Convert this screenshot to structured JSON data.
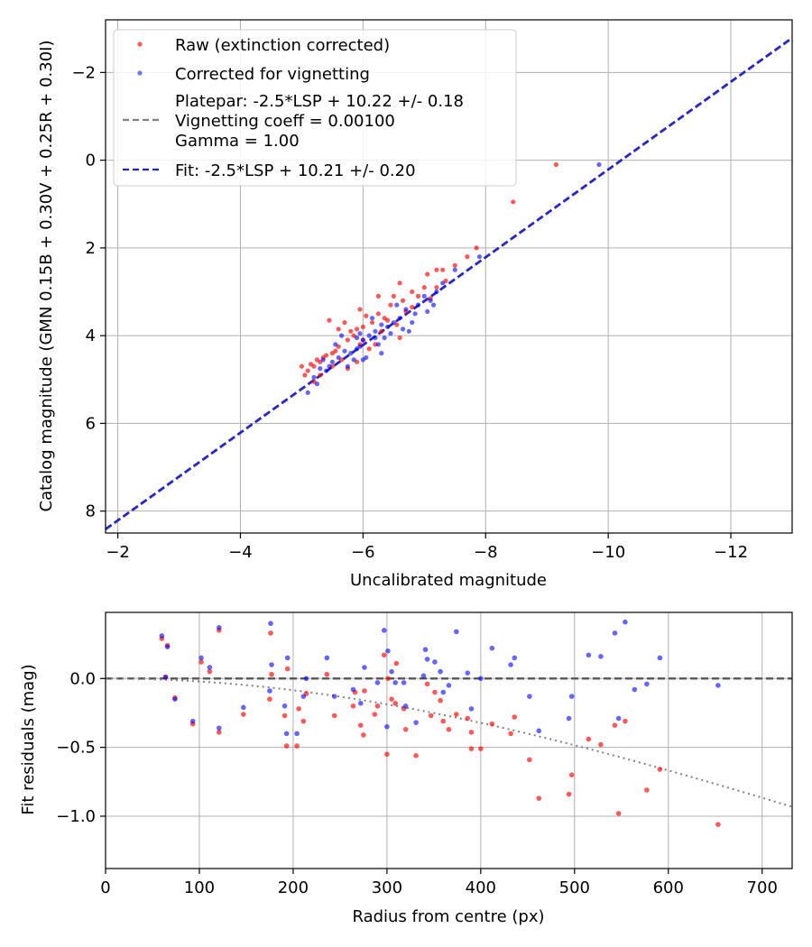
{
  "chart_data": [
    {
      "type": "scatter",
      "xlabel": "Uncalibrated magnitude",
      "ylabel": "Catalog magnitude (GMN 0.15B + 0.30V + 0.25R + 0.30I)",
      "xlim": [
        -1.8,
        -13.0
      ],
      "ylim": [
        8.5,
        -3.2
      ],
      "xticks": [
        -2,
        -4,
        -6,
        -8,
        -10,
        -12
      ],
      "xtick_labels": [
        "−2",
        "−4",
        "−6",
        "−8",
        "−10",
        "−12"
      ],
      "yticks": [
        -2,
        0,
        2,
        4,
        6,
        8
      ],
      "ytick_labels": [
        "−2",
        "0",
        "2",
        "4",
        "6",
        "8"
      ],
      "grid": true,
      "legend_position": "top-left",
      "legend": [
        {
          "label": "Raw (extinction corrected)",
          "kind": "point",
          "color": "#ff0000"
        },
        {
          "label": "Corrected for vignetting",
          "kind": "point",
          "color": "#0000ff"
        },
        {
          "label": "Platepar: -2.5*LSP + 10.22 +/- 0.18",
          "kind": "none",
          "color": "#808080"
        },
        {
          "label": "Vignetting coeff = 0.00100",
          "kind": "dashed",
          "color": "#808080"
        },
        {
          "label": "Gamma = 1.00",
          "kind": "none",
          "color": "#808080"
        },
        {
          "label": "Fit: -2.5*LSP + 10.21 +/- 0.20",
          "kind": "dashed",
          "color": "#0000ff"
        }
      ],
      "lines": [
        {
          "name": "Platepar",
          "slope": 1.0,
          "intercept": 10.22,
          "color": "#808080",
          "style": "dashed"
        },
        {
          "name": "Fit",
          "slope": 1.0,
          "intercept": 10.21,
          "color": "#0000ff",
          "style": "dashed"
        }
      ],
      "series": [
        {
          "name": "Raw (extinction corrected)",
          "color": "#ff0000",
          "points": [
            [
              -9.15,
              0.1
            ],
            [
              -8.45,
              0.95
            ],
            [
              -7.85,
              2.0
            ],
            [
              -7.7,
              2.2
            ],
            [
              -7.5,
              2.4
            ],
            [
              -7.3,
              2.5
            ],
            [
              -7.2,
              2.5
            ],
            [
              -7.05,
              2.6
            ],
            [
              -7.0,
              2.9
            ],
            [
              -6.9,
              3.1
            ],
            [
              -6.8,
              3.0
            ],
            [
              -6.65,
              3.2
            ],
            [
              -6.6,
              2.8
            ],
            [
              -6.5,
              3.1
            ],
            [
              -6.45,
              3.3
            ],
            [
              -6.35,
              3.6
            ],
            [
              -6.25,
              3.5
            ],
            [
              -6.15,
              3.7
            ],
            [
              -6.05,
              3.55
            ],
            [
              -6.0,
              3.8
            ],
            [
              -5.95,
              3.4
            ],
            [
              -5.9,
              3.85
            ],
            [
              -5.85,
              4.0
            ],
            [
              -5.8,
              3.9
            ],
            [
              -5.75,
              4.1
            ],
            [
              -5.7,
              3.7
            ],
            [
              -5.6,
              4.25
            ],
            [
              -5.55,
              4.35
            ],
            [
              -5.5,
              4.4
            ],
            [
              -5.45,
              3.65
            ],
            [
              -5.4,
              4.45
            ],
            [
              -5.35,
              4.5
            ],
            [
              -5.3,
              4.6
            ],
            [
              -5.25,
              4.55
            ],
            [
              -5.2,
              4.7
            ],
            [
              -5.15,
              4.65
            ],
            [
              -5.1,
              4.8
            ],
            [
              -5.05,
              4.9
            ],
            [
              -5.0,
              4.7
            ],
            [
              -6.1,
              4.3
            ],
            [
              -6.3,
              3.9
            ],
            [
              -6.55,
              3.75
            ],
            [
              -6.8,
              3.35
            ],
            [
              -7.1,
              3.15
            ],
            [
              -6.2,
              4.2
            ],
            [
              -5.65,
              4.55
            ],
            [
              -5.95,
              4.2
            ],
            [
              -6.4,
              3.65
            ],
            [
              -6.7,
              3.45
            ],
            [
              -7.2,
              2.9
            ],
            [
              -5.9,
              4.6
            ],
            [
              -5.5,
              4.7
            ],
            [
              -6.0,
              4.1
            ],
            [
              -5.75,
              4.75
            ],
            [
              -5.3,
              4.9
            ],
            [
              -6.6,
              4.05
            ],
            [
              -7.35,
              2.75
            ],
            [
              -6.25,
              3.1
            ],
            [
              -5.6,
              3.85
            ],
            [
              -5.2,
              5.05
            ]
          ]
        },
        {
          "name": "Corrected for vignetting",
          "color": "#0000ff",
          "points": [
            [
              -9.85,
              0.1
            ],
            [
              -7.9,
              2.2
            ],
            [
              -7.5,
              2.5
            ],
            [
              -7.3,
              2.8
            ],
            [
              -7.2,
              3.0
            ],
            [
              -7.1,
              3.2
            ],
            [
              -7.0,
              3.1
            ],
            [
              -6.9,
              3.3
            ],
            [
              -6.85,
              3.5
            ],
            [
              -6.7,
              3.4
            ],
            [
              -6.6,
              3.6
            ],
            [
              -6.5,
              3.7
            ],
            [
              -6.4,
              3.8
            ],
            [
              -6.3,
              3.75
            ],
            [
              -6.2,
              3.9
            ],
            [
              -6.1,
              4.0
            ],
            [
              -6.0,
              4.1
            ],
            [
              -5.95,
              4.25
            ],
            [
              -5.9,
              4.3
            ],
            [
              -5.8,
              4.4
            ],
            [
              -5.7,
              4.35
            ],
            [
              -5.6,
              4.5
            ],
            [
              -5.5,
              4.6
            ],
            [
              -5.45,
              4.7
            ],
            [
              -5.4,
              4.8
            ],
            [
              -5.3,
              4.75
            ],
            [
              -5.2,
              4.95
            ],
            [
              -5.1,
              5.3
            ],
            [
              -6.05,
              4.5
            ],
            [
              -6.25,
              4.2
            ],
            [
              -6.45,
              3.95
            ],
            [
              -6.75,
              3.9
            ],
            [
              -7.05,
              3.45
            ],
            [
              -6.35,
              4.05
            ],
            [
              -5.85,
              4.55
            ],
            [
              -5.65,
              4.0
            ],
            [
              -5.55,
              4.2
            ],
            [
              -6.15,
              3.6
            ],
            [
              -6.55,
              3.3
            ],
            [
              -5.75,
              4.7
            ],
            [
              -6.0,
              4.55
            ],
            [
              -5.35,
              4.55
            ],
            [
              -6.65,
              3.85
            ],
            [
              -5.9,
              4.05
            ],
            [
              -6.3,
              4.4
            ],
            [
              -7.15,
              3.3
            ],
            [
              -5.25,
              5.1
            ],
            [
              -6.8,
              3.7
            ],
            [
              -5.95,
              3.95
            ],
            [
              -6.2,
              4.05
            ]
          ]
        }
      ]
    },
    {
      "type": "scatter",
      "xlabel": "Radius from centre (px)",
      "ylabel": "Fit residuals (mag)",
      "xlim": [
        0,
        732
      ],
      "ylim": [
        -1.38,
        0.48
      ],
      "xticks": [
        0,
        100,
        200,
        300,
        400,
        500,
        600,
        700
      ],
      "xtick_labels": [
        "0",
        "100",
        "200",
        "300",
        "400",
        "500",
        "600",
        "700"
      ],
      "yticks": [
        0.0,
        -0.5,
        -1.0
      ],
      "ytick_labels": [
        "0.0",
        "−0.5",
        "−1.0"
      ],
      "grid": true,
      "lines": [
        {
          "name": "zero line",
          "y": 0.0,
          "color": "#555555",
          "style": "dashed"
        },
        {
          "name": "vignetting model",
          "coeff": 0.001,
          "color": "#808080",
          "style": "dotted"
        }
      ],
      "series": [
        {
          "name": "Raw",
          "color": "#ff0000",
          "points": [
            [
              60,
              0.29
            ],
            [
              64,
              0.01
            ],
            [
              66,
              0.24
            ],
            [
              74,
              -0.14
            ],
            [
              93,
              -0.33
            ],
            [
              102,
              0.12
            ],
            [
              111,
              0.05
            ],
            [
              121,
              0.35
            ],
            [
              121,
              -0.39
            ],
            [
              147,
              -0.26
            ],
            [
              175,
              -0.15
            ],
            [
              176,
              0.33
            ],
            [
              177,
              0.03
            ],
            [
              191,
              -0.27
            ],
            [
              193,
              -0.49
            ],
            [
              194,
              0.07
            ],
            [
              204,
              -0.49
            ],
            [
              206,
              -0.22
            ],
            [
              211,
              -0.31
            ],
            [
              214,
              -0.11
            ],
            [
              236,
              0.03
            ],
            [
              244,
              -0.27
            ],
            [
              264,
              -0.2
            ],
            [
              266,
              -0.1
            ],
            [
              272,
              -0.34
            ],
            [
              275,
              -0.41
            ],
            [
              276,
              -0.09
            ],
            [
              287,
              -0.26
            ],
            [
              290,
              -0.2
            ],
            [
              297,
              0.17
            ],
            [
              300,
              -0.55
            ],
            [
              301,
              0.0
            ],
            [
              305,
              -0.15
            ],
            [
              309,
              -0.18
            ],
            [
              310,
              0.11
            ],
            [
              318,
              -0.22
            ],
            [
              320,
              -0.37
            ],
            [
              331,
              -0.56
            ],
            [
              343,
              -0.04
            ],
            [
              347,
              -0.27
            ],
            [
              351,
              -0.1
            ],
            [
              357,
              -0.16
            ],
            [
              360,
              -0.31
            ],
            [
              366,
              -0.37
            ],
            [
              374,
              -0.26
            ],
            [
              386,
              -0.29
            ],
            [
              390,
              -0.51
            ],
            [
              390,
              -0.39
            ],
            [
              400,
              -0.51
            ],
            [
              412,
              -0.33
            ],
            [
              432,
              -0.4
            ],
            [
              436,
              -0.28
            ],
            [
              452,
              -0.59
            ],
            [
              462,
              -0.87
            ],
            [
              494,
              -0.84
            ],
            [
              497,
              -0.7
            ],
            [
              515,
              -0.44
            ],
            [
              528,
              -0.48
            ],
            [
              543,
              -0.34
            ],
            [
              547,
              -0.98
            ],
            [
              554,
              -0.31
            ],
            [
              577,
              -0.81
            ],
            [
              591,
              -0.66
            ],
            [
              653,
              -1.06
            ]
          ]
        },
        {
          "name": "Corrected",
          "color": "#0000ff",
          "points": [
            [
              60,
              0.31
            ],
            [
              64,
              0.01
            ],
            [
              66,
              0.23
            ],
            [
              74,
              -0.15
            ],
            [
              93,
              -0.31
            ],
            [
              102,
              0.15
            ],
            [
              111,
              0.08
            ],
            [
              121,
              0.37
            ],
            [
              121,
              -0.36
            ],
            [
              147,
              -0.21
            ],
            [
              175,
              -0.09
            ],
            [
              176,
              0.4
            ],
            [
              177,
              0.1
            ],
            [
              191,
              -0.2
            ],
            [
              193,
              -0.4
            ],
            [
              194,
              0.15
            ],
            [
              204,
              -0.4
            ],
            [
              211,
              -0.13
            ],
            [
              214,
              0.0
            ],
            [
              244,
              -0.13
            ],
            [
              236,
              0.15
            ],
            [
              264,
              -0.08
            ],
            [
              272,
              -0.18
            ],
            [
              276,
              0.08
            ],
            [
              290,
              -0.03
            ],
            [
              297,
              0.35
            ],
            [
              300,
              -0.35
            ],
            [
              301,
              0.2
            ],
            [
              305,
              0.05
            ],
            [
              309,
              -0.03
            ],
            [
              318,
              -0.03
            ],
            [
              320,
              -0.2
            ],
            [
              331,
              -0.32
            ],
            [
              339,
              0.02
            ],
            [
              341,
              0.21
            ],
            [
              343,
              0.14
            ],
            [
              351,
              0.12
            ],
            [
              357,
              0.05
            ],
            [
              360,
              -0.1
            ],
            [
              366,
              -0.05
            ],
            [
              374,
              0.34
            ],
            [
              386,
              0.04
            ],
            [
              390,
              -0.22
            ],
            [
              400,
              0.0
            ],
            [
              412,
              0.22
            ],
            [
              432,
              0.1
            ],
            [
              436,
              0.15
            ],
            [
              452,
              -0.13
            ],
            [
              462,
              -0.38
            ],
            [
              494,
              -0.29
            ],
            [
              497,
              -0.13
            ],
            [
              515,
              0.17
            ],
            [
              528,
              0.16
            ],
            [
              543,
              0.33
            ],
            [
              547,
              -0.29
            ],
            [
              554,
              0.41
            ],
            [
              564,
              -0.08
            ],
            [
              577,
              -0.04
            ],
            [
              591,
              0.15
            ],
            [
              653,
              -0.05
            ]
          ]
        }
      ]
    }
  ]
}
